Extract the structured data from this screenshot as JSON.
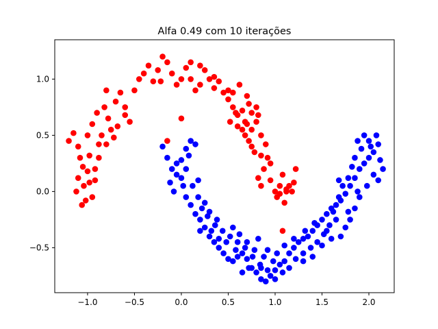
{
  "chart_data": {
    "type": "scatter",
    "title": "Alfa 0.49 com 10 iterações",
    "xlabel": "",
    "ylabel": "",
    "xlim": [
      -1.35,
      2.27
    ],
    "ylim": [
      -0.9,
      1.35
    ],
    "x_ticks": [
      -1.0,
      -0.5,
      0.0,
      0.5,
      1.0,
      1.5,
      2.0
    ],
    "x_tick_labels": [
      "−1.0",
      "−0.5",
      "0.0",
      "0.5",
      "1.0",
      "1.5",
      "2.0"
    ],
    "y_ticks": [
      -0.5,
      0.0,
      0.5,
      1.0
    ],
    "y_tick_labels": [
      "−0.5",
      "0.0",
      "0.5",
      "1.0"
    ],
    "grid": false,
    "series": [
      {
        "color": "#ff0000",
        "points": [
          [
            -1.2,
            0.45
          ],
          [
            -1.15,
            0.52
          ],
          [
            -1.1,
            0.4
          ],
          [
            -1.08,
            0.3
          ],
          [
            -1.05,
            0.22
          ],
          [
            -1.1,
            0.12
          ],
          [
            -1.12,
            0.0
          ],
          [
            -1.02,
            -0.08
          ],
          [
            -1.06,
            -0.12
          ],
          [
            -0.95,
            -0.05
          ],
          [
            -0.98,
            0.08
          ],
          [
            -0.92,
            0.2
          ],
          [
            -0.88,
            0.3
          ],
          [
            -1.0,
            0.5
          ],
          [
            -0.95,
            0.6
          ],
          [
            -0.9,
            0.7
          ],
          [
            -0.82,
            0.75
          ],
          [
            -0.78,
            0.65
          ],
          [
            -0.85,
            0.5
          ],
          [
            -0.8,
            0.42
          ],
          [
            -0.75,
            0.55
          ],
          [
            -0.7,
            0.8
          ],
          [
            -0.65,
            0.88
          ],
          [
            -0.6,
            0.75
          ],
          [
            -0.55,
            0.62
          ],
          [
            -0.5,
            0.9
          ],
          [
            -0.45,
            1.0
          ],
          [
            -0.4,
            1.05
          ],
          [
            -0.35,
            1.12
          ],
          [
            -0.3,
            0.98
          ],
          [
            -0.25,
            1.08
          ],
          [
            -0.2,
            1.2
          ],
          [
            -0.15,
            1.15
          ],
          [
            -0.1,
            1.05
          ],
          [
            -0.05,
            0.95
          ],
          [
            0.0,
            1.0
          ],
          [
            0.05,
            1.1
          ],
          [
            0.1,
            1.0
          ],
          [
            0.15,
            0.9
          ],
          [
            0.2,
            0.95
          ],
          [
            0.25,
            1.08
          ],
          [
            0.3,
            1.0
          ],
          [
            0.35,
            0.92
          ],
          [
            0.4,
            0.98
          ],
          [
            0.45,
            0.88
          ],
          [
            0.5,
            0.82
          ],
          [
            0.55,
            0.75
          ],
          [
            0.6,
            0.68
          ],
          [
            0.65,
            0.72
          ],
          [
            0.7,
            0.6
          ],
          [
            0.75,
            0.55
          ],
          [
            0.8,
            0.62
          ],
          [
            0.85,
            0.5
          ],
          [
            0.9,
            0.42
          ],
          [
            0.92,
            0.3
          ],
          [
            0.88,
            0.2
          ],
          [
            0.82,
            0.12
          ],
          [
            0.85,
            0.05
          ],
          [
            0.95,
            0.1
          ],
          [
            1.0,
            0.0
          ],
          [
            1.02,
            -0.05
          ],
          [
            1.05,
            0.05
          ],
          [
            1.08,
            0.15
          ],
          [
            1.12,
            0.0
          ],
          [
            1.15,
            0.05
          ],
          [
            1.2,
            0.08
          ],
          [
            1.22,
            0.2
          ],
          [
            1.18,
            0.0
          ],
          [
            1.1,
            -0.1
          ],
          [
            1.05,
            -0.02
          ],
          [
            0.78,
            0.35
          ],
          [
            0.72,
            0.45
          ],
          [
            0.68,
            0.5
          ],
          [
            0.6,
            0.58
          ],
          [
            0.52,
            0.62
          ],
          [
            -0.6,
            0.68
          ],
          [
            -0.68,
            0.58
          ],
          [
            -0.72,
            0.48
          ],
          [
            -0.88,
            0.42
          ],
          [
            -0.98,
            0.32
          ],
          [
            -1.0,
            0.18
          ],
          [
            -1.04,
            0.05
          ],
          [
            -0.92,
            0.1
          ],
          [
            0.0,
            0.65
          ],
          [
            0.35,
            1.02
          ],
          [
            0.62,
            0.95
          ],
          [
            0.7,
            0.85
          ],
          [
            0.55,
            0.88
          ],
          [
            0.58,
            0.7
          ],
          [
            0.75,
            0.7
          ],
          [
            0.8,
            0.75
          ],
          [
            0.82,
            0.68
          ],
          [
            0.95,
            0.25
          ],
          [
            0.85,
            0.32
          ],
          [
            0.75,
            0.4
          ],
          [
            0.68,
            0.62
          ],
          [
            -0.15,
            0.45
          ],
          [
            -0.22,
            0.98
          ],
          [
            0.1,
            1.15
          ],
          [
            0.2,
            1.12
          ],
          [
            0.5,
            0.9
          ],
          [
            1.12,
            0.02
          ],
          [
            -0.8,
            0.9
          ],
          [
            0.72,
            0.78
          ],
          [
            0.65,
            0.55
          ],
          [
            1.08,
            -0.35
          ]
        ]
      },
      {
        "color": "#0000ff",
        "points": [
          [
            -0.2,
            0.4
          ],
          [
            -0.15,
            0.3
          ],
          [
            -0.1,
            0.2
          ],
          [
            -0.12,
            0.08
          ],
          [
            -0.08,
            0.0
          ],
          [
            -0.05,
            0.15
          ],
          [
            0.0,
            0.28
          ],
          [
            0.05,
            0.38
          ],
          [
            0.1,
            0.45
          ],
          [
            0.08,
            0.32
          ],
          [
            0.0,
            0.12
          ],
          [
            0.02,
            0.05
          ],
          [
            0.05,
            -0.05
          ],
          [
            0.1,
            -0.12
          ],
          [
            0.15,
            -0.2
          ],
          [
            0.2,
            -0.25
          ],
          [
            0.25,
            -0.32
          ],
          [
            0.3,
            -0.4
          ],
          [
            0.35,
            -0.45
          ],
          [
            0.4,
            -0.5
          ],
          [
            0.45,
            -0.55
          ],
          [
            0.5,
            -0.6
          ],
          [
            0.55,
            -0.62
          ],
          [
            0.6,
            -0.58
          ],
          [
            0.65,
            -0.55
          ],
          [
            0.7,
            -0.6
          ],
          [
            0.75,
            -0.68
          ],
          [
            0.8,
            -0.72
          ],
          [
            0.85,
            -0.78
          ],
          [
            0.9,
            -0.8
          ],
          [
            0.95,
            -0.75
          ],
          [
            1.0,
            -0.7
          ],
          [
            1.05,
            -0.65
          ],
          [
            1.1,
            -0.62
          ],
          [
            1.15,
            -0.55
          ],
          [
            1.2,
            -0.5
          ],
          [
            1.25,
            -0.45
          ],
          [
            1.3,
            -0.42
          ],
          [
            1.35,
            -0.4
          ],
          [
            1.4,
            -0.35
          ],
          [
            1.45,
            -0.3
          ],
          [
            1.5,
            -0.25
          ],
          [
            1.55,
            -0.2
          ],
          [
            1.6,
            -0.15
          ],
          [
            1.65,
            -0.12
          ],
          [
            1.7,
            -0.08
          ],
          [
            1.75,
            -0.02
          ],
          [
            1.8,
            0.05
          ],
          [
            1.85,
            0.12
          ],
          [
            1.9,
            0.2
          ],
          [
            1.95,
            0.25
          ],
          [
            2.0,
            0.3
          ],
          [
            2.05,
            0.35
          ],
          [
            2.1,
            0.42
          ],
          [
            2.08,
            0.5
          ],
          [
            2.0,
            0.45
          ],
          [
            1.92,
            0.38
          ],
          [
            1.85,
            0.3
          ],
          [
            1.82,
            0.22
          ],
          [
            1.78,
            0.12
          ],
          [
            1.72,
            0.05
          ],
          [
            1.68,
            -0.05
          ],
          [
            1.62,
            -0.18
          ],
          [
            1.58,
            -0.3
          ],
          [
            1.52,
            -0.38
          ],
          [
            1.45,
            -0.45
          ],
          [
            1.38,
            -0.5
          ],
          [
            1.3,
            -0.55
          ],
          [
            1.22,
            -0.6
          ],
          [
            1.15,
            -0.68
          ],
          [
            1.08,
            -0.72
          ],
          [
            1.0,
            -0.78
          ],
          [
            0.92,
            -0.7
          ],
          [
            0.84,
            -0.65
          ],
          [
            0.76,
            -0.58
          ],
          [
            0.68,
            -0.5
          ],
          [
            0.6,
            -0.45
          ],
          [
            0.52,
            -0.4
          ],
          [
            0.44,
            -0.35
          ],
          [
            0.36,
            -0.3
          ],
          [
            0.28,
            -0.22
          ],
          [
            0.22,
            -0.15
          ],
          [
            0.18,
            -0.05
          ],
          [
            0.12,
            0.05
          ],
          [
            0.18,
            0.1
          ],
          [
            0.05,
            0.2
          ],
          [
            -0.05,
            0.25
          ],
          [
            0.15,
            0.42
          ],
          [
            1.95,
            0.5
          ],
          [
            2.12,
            0.28
          ],
          [
            2.15,
            0.2
          ],
          [
            2.05,
            0.15
          ],
          [
            1.98,
            0.05
          ],
          [
            1.9,
            -0.05
          ],
          [
            1.85,
            -0.15
          ],
          [
            1.8,
            -0.25
          ],
          [
            1.75,
            -0.32
          ],
          [
            1.7,
            -0.4
          ],
          [
            1.6,
            -0.42
          ],
          [
            1.5,
            -0.48
          ],
          [
            1.4,
            -0.58
          ],
          [
            1.3,
            -0.62
          ],
          [
            0.98,
            -0.62
          ],
          [
            0.88,
            -0.58
          ],
          [
            0.78,
            -0.52
          ],
          [
            0.7,
            -0.45
          ],
          [
            0.58,
            -0.52
          ],
          [
            0.48,
            -0.45
          ],
          [
            0.4,
            -0.42
          ],
          [
            0.32,
            -0.35
          ],
          [
            0.2,
            -0.35
          ],
          [
            0.25,
            -0.1
          ],
          [
            0.3,
            -0.18
          ],
          [
            0.38,
            -0.25
          ],
          [
            1.1,
            -0.48
          ],
          [
            1.2,
            -0.42
          ],
          [
            1.32,
            -0.35
          ],
          [
            1.42,
            -0.28
          ],
          [
            1.55,
            -0.35
          ],
          [
            1.65,
            -0.25
          ],
          [
            1.78,
            -0.18
          ],
          [
            1.88,
            0.0
          ],
          [
            2.02,
            0.4
          ],
          [
            1.88,
            0.45
          ],
          [
            2.1,
            0.1
          ],
          [
            1.68,
            0.1
          ],
          [
            0.92,
            -0.52
          ],
          [
            0.62,
            -0.38
          ],
          [
            0.55,
            -0.32
          ],
          [
            0.82,
            -0.42
          ],
          [
            1.02,
            -0.55
          ],
          [
            0.72,
            -0.68
          ],
          [
            0.65,
            -0.72
          ],
          [
            0.85,
            -0.68
          ]
        ]
      }
    ]
  }
}
